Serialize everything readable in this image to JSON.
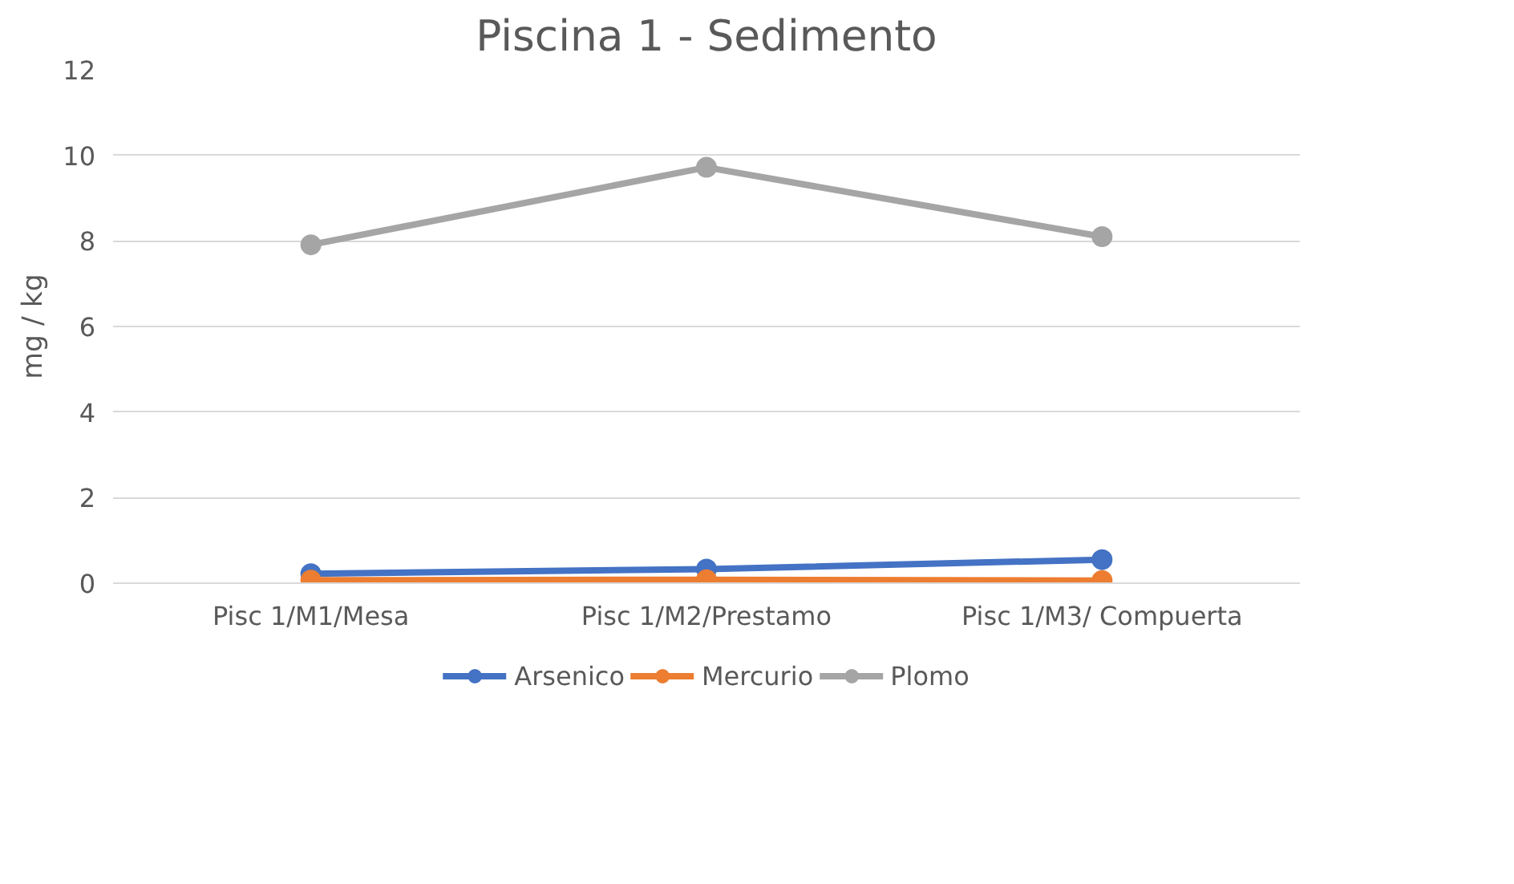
{
  "chart_data": {
    "type": "line",
    "title": "Piscina 1 - Sedimento",
    "ylabel": "mg / kg",
    "categories": [
      "Pisc 1/M1/Mesa",
      "Pisc 1/M2/Prestamo",
      "Pisc 1/M3/ Compuerta"
    ],
    "series": [
      {
        "name": "Arsenico",
        "color": "#4472c4",
        "values": [
          0.22,
          0.33,
          0.55
        ]
      },
      {
        "name": "Mercurio",
        "color": "#ed7d31",
        "values": [
          0.07,
          0.08,
          0.06
        ]
      },
      {
        "name": "Plomo",
        "color": "#a5a5a5",
        "values": [
          7.91,
          9.72,
          8.1
        ]
      }
    ],
    "ylim": [
      0,
      12
    ],
    "yticks": [
      0,
      2,
      4,
      6,
      8,
      10,
      12
    ],
    "grid": "y",
    "legend": "bottom",
    "marker": "circle",
    "line_style": "solid"
  }
}
